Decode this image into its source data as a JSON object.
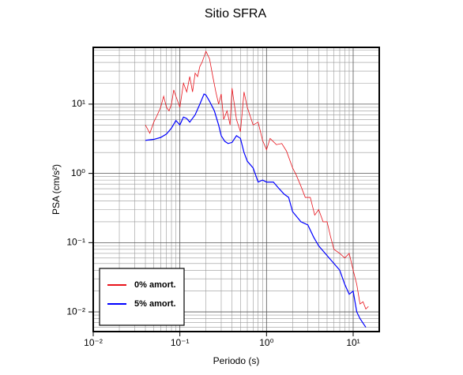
{
  "chart_data": {
    "type": "line",
    "title": "Sitio SFRA",
    "x_label": "Periodo (s)",
    "y_label": "PSA (cm/s²)",
    "log_x": true,
    "log_y": true,
    "grid": true,
    "legend": "lower left",
    "xlim": [
      0.01,
      20
    ],
    "ylim": [
      0.0052,
      66
    ],
    "xticks": [
      {
        "value": 0.01,
        "label": "10⁻²"
      },
      {
        "value": 0.1,
        "label": "10⁻¹"
      },
      {
        "value": 1,
        "label": "10⁰"
      },
      {
        "value": 10,
        "label": "10¹"
      }
    ],
    "yticks": [
      {
        "value": 0.01,
        "label": "10⁻²"
      },
      {
        "value": 0.1,
        "label": "10⁻¹"
      },
      {
        "value": 1,
        "label": "10⁰"
      },
      {
        "value": 10,
        "label": "10¹"
      }
    ],
    "xminorticks": [
      0.02,
      0.03,
      0.04,
      0.05,
      0.06,
      0.07,
      0.08,
      0.09,
      0.2,
      0.3,
      0.4,
      0.5,
      0.6,
      0.7,
      0.8,
      0.9,
      2,
      3,
      4,
      5,
      6,
      7,
      8,
      9
    ],
    "yminorticks": [
      0.006,
      0.007,
      0.008,
      0.009,
      0.02,
      0.03,
      0.04,
      0.05,
      0.06,
      0.07,
      0.08,
      0.09,
      0.2,
      0.3,
      0.4,
      0.5,
      0.6,
      0.7,
      0.8,
      0.9,
      2,
      3,
      4,
      5,
      6,
      7,
      8,
      9,
      20,
      30,
      40,
      50,
      60
    ],
    "series": [
      {
        "name": "0% amort.",
        "color": "#e8141c",
        "x": [
          0.04,
          0.045,
          0.05,
          0.055,
          0.06,
          0.065,
          0.07,
          0.075,
          0.08,
          0.085,
          0.09,
          0.1,
          0.11,
          0.12,
          0.13,
          0.14,
          0.15,
          0.16,
          0.17,
          0.18,
          0.2,
          0.22,
          0.24,
          0.26,
          0.28,
          0.3,
          0.32,
          0.35,
          0.38,
          0.4,
          0.45,
          0.5,
          0.55,
          0.6,
          0.7,
          0.8,
          0.9,
          1.0,
          1.1,
          1.3,
          1.5,
          1.7,
          2.0,
          2.2,
          2.5,
          2.8,
          3.2,
          3.6,
          4.0,
          4.5,
          5,
          5.5,
          6,
          7,
          8,
          9,
          10,
          11,
          12,
          13,
          14,
          15
        ],
        "values": [
          5,
          3.8,
          5.5,
          7,
          9,
          13,
          9,
          8,
          10,
          16,
          13,
          9,
          20,
          15,
          25,
          15,
          28,
          25,
          35,
          40,
          58,
          45,
          25,
          15,
          10,
          14,
          6,
          8,
          5,
          17,
          6,
          4,
          15,
          9,
          5,
          5.5,
          3,
          2.2,
          3.2,
          2.6,
          2.7,
          2.1,
          1.2,
          0.95,
          0.65,
          0.45,
          0.45,
          0.25,
          0.3,
          0.2,
          0.2,
          0.12,
          0.08,
          0.07,
          0.06,
          0.07,
          0.04,
          0.025,
          0.013,
          0.014,
          0.011,
          0.012
        ]
      },
      {
        "name": "5% amort.",
        "color": "#0000ff",
        "x": [
          0.04,
          0.05,
          0.06,
          0.07,
          0.08,
          0.09,
          0.1,
          0.11,
          0.12,
          0.13,
          0.15,
          0.17,
          0.19,
          0.2,
          0.22,
          0.25,
          0.28,
          0.3,
          0.33,
          0.36,
          0.4,
          0.45,
          0.5,
          0.55,
          0.6,
          0.7,
          0.8,
          0.9,
          1.0,
          1.2,
          1.4,
          1.6,
          1.8,
          2.0,
          2.5,
          3,
          3.5,
          4,
          5,
          6,
          7,
          8,
          9,
          10,
          11,
          12,
          14
        ],
        "values": [
          3.0,
          3.1,
          3.3,
          3.7,
          4.5,
          5.8,
          5,
          6.5,
          6.2,
          5.5,
          7,
          10,
          14,
          13.5,
          11,
          8,
          5,
          3.5,
          2.9,
          2.7,
          2.8,
          3.5,
          3.2,
          2,
          1.5,
          1.2,
          0.75,
          0.8,
          0.75,
          0.75,
          0.6,
          0.5,
          0.45,
          0.28,
          0.2,
          0.18,
          0.12,
          0.09,
          0.065,
          0.05,
          0.04,
          0.025,
          0.018,
          0.02,
          0.01,
          0.008,
          0.006
        ]
      }
    ]
  }
}
